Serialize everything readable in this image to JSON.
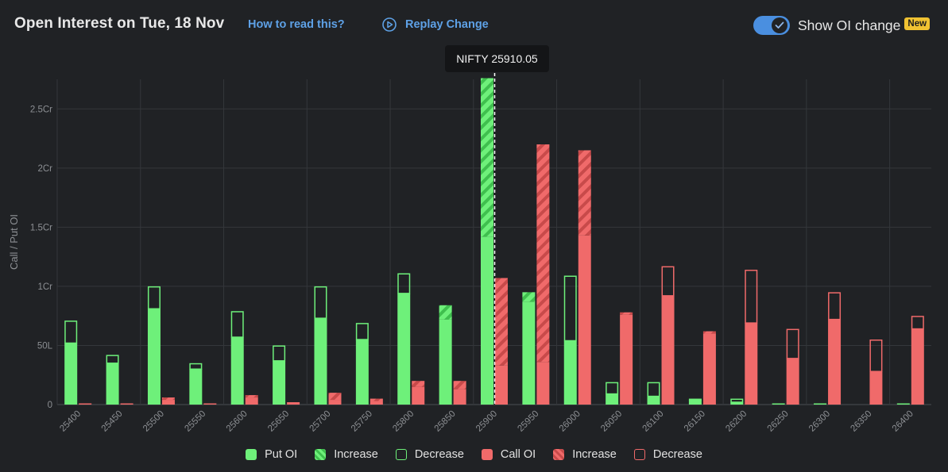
{
  "header": {
    "title": "Open Interest on Tue, 18 Nov",
    "how_to_read": "How to read this?",
    "replay_label": "Replay Change",
    "toggle_label": "Show OI change",
    "badge": "New",
    "toggle_on": true
  },
  "tooltip": {
    "text": "NIFTY 25910.05"
  },
  "legend": {
    "put_oi": "Put OI",
    "put_increase": "Increase",
    "put_decrease": "Decrease",
    "call_oi": "Call OI",
    "call_increase": "Increase",
    "call_decrease": "Decrease"
  },
  "colors": {
    "put": "#6ef07a",
    "put_dark": "#3fbf4e",
    "call": "#f06a6a",
    "call_dark": "#c84a4a",
    "grid": "#34373b",
    "axis_text": "#8c8f93",
    "accent": "#4a8fe0"
  },
  "chart_data": {
    "type": "bar",
    "title": "Open Interest on Tue, 18 Nov",
    "xlabel": "",
    "ylabel": "Call / Put OI",
    "unit": "Lakh",
    "ylim": [
      0,
      275
    ],
    "y_ticks": [
      0,
      50,
      100,
      150,
      200,
      250
    ],
    "y_tick_labels": [
      "0",
      "50L",
      "1Cr",
      "1.5Cr",
      "2Cr",
      "2.5Cr"
    ],
    "spot": {
      "label": "NIFTY",
      "value": 25910.05,
      "x_category": "25900"
    },
    "categories": [
      "25400",
      "25450",
      "25500",
      "25550",
      "25600",
      "25650",
      "25700",
      "25750",
      "25800",
      "25850",
      "25900",
      "25950",
      "26000",
      "26050",
      "26100",
      "26150",
      "26200",
      "26250",
      "26300",
      "26350",
      "26400"
    ],
    "series": [
      {
        "name": "Put OI",
        "values": [
          52,
          35,
          81,
          30,
          57,
          37,
          73,
          55,
          94,
          84,
          276,
          95,
          54,
          9,
          7,
          4,
          2,
          1,
          1,
          0,
          1
        ],
        "prev_values": [
          71,
          42,
          100,
          35,
          79,
          50,
          100,
          69,
          111,
          72,
          142,
          87,
          109,
          19,
          19,
          5,
          5,
          1,
          1,
          0,
          1
        ]
      },
      {
        "name": "Call OI",
        "values": [
          1,
          1,
          6,
          1,
          8,
          2,
          10,
          5,
          20,
          20,
          107,
          220,
          215,
          78,
          92,
          62,
          69,
          39,
          72,
          28,
          64
        ],
        "prev_values": [
          1,
          1,
          4,
          1,
          6,
          2,
          4,
          3,
          15,
          13,
          33,
          36,
          143,
          76,
          117,
          60,
          114,
          64,
          95,
          55,
          75
        ]
      }
    ]
  }
}
